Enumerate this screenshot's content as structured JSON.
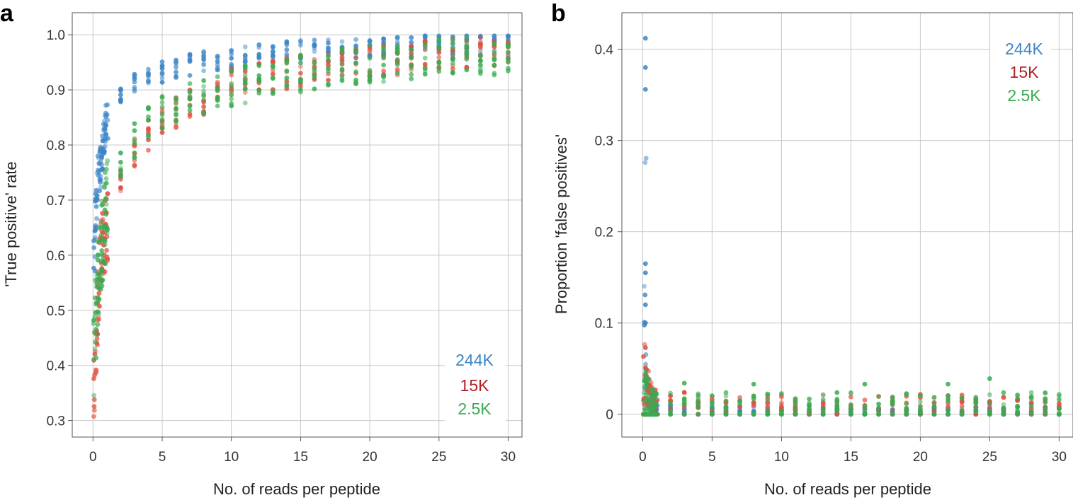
{
  "chart_data": [
    {
      "panel_label": "a",
      "type": "scatter",
      "xlabel": "No. of reads per peptide",
      "ylabel": "'True positive' rate",
      "xlim": [
        -1.5,
        31
      ],
      "ylim": [
        0.27,
        1.04
      ],
      "xticks": [
        0,
        5,
        10,
        15,
        20,
        25,
        30
      ],
      "xtick_labels": [
        "0",
        "5",
        "10",
        "15",
        "20",
        "25",
        "30"
      ],
      "yticks": [
        0.3,
        0.4,
        0.5,
        0.6,
        0.7,
        0.8,
        0.9,
        1.0
      ],
      "ytick_labels": [
        "0.3",
        "0.4",
        "0.5",
        "0.6",
        "0.7",
        "0.8",
        "0.9",
        "1.0"
      ],
      "grid": true,
      "legend_position": "bottom-right",
      "legend": [
        "244K",
        "15K",
        "2.5K"
      ],
      "x": [
        0.1,
        0.2,
        0.3,
        0.4,
        0.5,
        0.6,
        0.7,
        0.8,
        0.9,
        1,
        2,
        3,
        4,
        5,
        6,
        7,
        8,
        9,
        10,
        11,
        12,
        13,
        14,
        15,
        16,
        17,
        18,
        19,
        20,
        21,
        22,
        23,
        24,
        25,
        26,
        27,
        28,
        29,
        30
      ],
      "series": [
        {
          "name": "244K",
          "color": "#3d85c6",
          "values": [
            0.6,
            0.67,
            0.71,
            0.74,
            0.76,
            0.78,
            0.79,
            0.81,
            0.82,
            0.83,
            0.89,
            0.915,
            0.925,
            0.932,
            0.94,
            0.945,
            0.95,
            0.955,
            0.958,
            0.962,
            0.965,
            0.967,
            0.969,
            0.971,
            0.972,
            0.973,
            0.974,
            0.975,
            0.976,
            0.977,
            0.978,
            0.979,
            0.979,
            0.98,
            0.98,
            0.981,
            0.981,
            0.982,
            0.982
          ],
          "spread": 0.02
        },
        {
          "name": "15K",
          "color": "#e05040",
          "values": [
            0.37,
            0.45,
            0.5,
            0.54,
            0.57,
            0.6,
            0.62,
            0.63,
            0.64,
            0.65,
            0.74,
            0.79,
            0.82,
            0.84,
            0.86,
            0.875,
            0.885,
            0.9,
            0.91,
            0.915,
            0.92,
            0.925,
            0.93,
            0.935,
            0.94,
            0.943,
            0.946,
            0.949,
            0.952,
            0.954,
            0.956,
            0.958,
            0.96,
            0.962,
            0.963,
            0.964,
            0.965,
            0.966,
            0.967
          ],
          "spread": 0.03
        },
        {
          "name": "2.5K",
          "color": "#3aaa50",
          "values": [
            0.42,
            0.48,
            0.53,
            0.56,
            0.58,
            0.6,
            0.63,
            0.66,
            0.68,
            0.7,
            0.77,
            0.81,
            0.835,
            0.855,
            0.87,
            0.88,
            0.89,
            0.9,
            0.905,
            0.91,
            0.915,
            0.92,
            0.925,
            0.93,
            0.935,
            0.938,
            0.941,
            0.944,
            0.947,
            0.95,
            0.952,
            0.954,
            0.956,
            0.958,
            0.959,
            0.96,
            0.961,
            0.962,
            0.963
          ],
          "spread": 0.035
        }
      ]
    },
    {
      "panel_label": "b",
      "type": "scatter",
      "xlabel": "No. of reads per peptide",
      "ylabel": "Proportion 'false positives'",
      "xlim": [
        -1.5,
        31
      ],
      "ylim": [
        -0.025,
        0.44
      ],
      "xticks": [
        0,
        5,
        10,
        15,
        20,
        25,
        30
      ],
      "xtick_labels": [
        "0",
        "5",
        "10",
        "15",
        "20",
        "25",
        "30"
      ],
      "yticks": [
        0,
        0.1,
        0.2,
        0.3,
        0.4
      ],
      "ytick_labels": [
        "0",
        "0.1",
        "0.2",
        "0.3",
        "0.4"
      ],
      "grid": true,
      "legend_position": "top-right",
      "legend": [
        "244K",
        "15K",
        "2.5K"
      ],
      "x": [
        0.1,
        0.2,
        0.3,
        0.4,
        0.5,
        0.6,
        0.7,
        0.8,
        0.9,
        1,
        2,
        3,
        4,
        5,
        6,
        7,
        8,
        9,
        10,
        11,
        12,
        13,
        14,
        15,
        16,
        17,
        18,
        19,
        20,
        21,
        22,
        23,
        24,
        25,
        26,
        27,
        28,
        29,
        30
      ],
      "series": [
        {
          "name": "244K",
          "color": "#3d85c6",
          "values": [
            0.09,
            0.16,
            0.03,
            0.02,
            0.015,
            0.012,
            0.01,
            0.009,
            0.008,
            0.008,
            0.006,
            0.006,
            0.005,
            0.005,
            0.005,
            0.005,
            0.004,
            0.004,
            0.004,
            0.004,
            0.004,
            0.004,
            0.004,
            0.004,
            0.004,
            0.004,
            0.004,
            0.004,
            0.004,
            0.004,
            0.004,
            0.004,
            0.004,
            0.004,
            0.004,
            0.004,
            0.004,
            0.004,
            0.004
          ],
          "extra_points": [
            [
              0.2,
              0.412
            ],
            [
              0.2,
              0.38
            ],
            [
              0.2,
              0.356
            ],
            [
              0.2,
              0.165
            ],
            [
              0.2,
              0.155
            ],
            [
              0.2,
              0.12
            ],
            [
              0.2,
              0.1
            ]
          ]
        },
        {
          "name": "15K",
          "color": "#e05040",
          "values": [
            0.035,
            0.04,
            0.03,
            0.025,
            0.02,
            0.018,
            0.016,
            0.015,
            0.014,
            0.013,
            0.012,
            0.012,
            0.011,
            0.011,
            0.011,
            0.011,
            0.011,
            0.011,
            0.011,
            0.011,
            0.011,
            0.011,
            0.011,
            0.011,
            0.011,
            0.011,
            0.011,
            0.011,
            0.011,
            0.011,
            0.011,
            0.011,
            0.011,
            0.011,
            0.011,
            0.011,
            0.011,
            0.011,
            0.011
          ],
          "extra_points": [
            [
              0.2,
              0.073
            ],
            [
              0.2,
              0.051
            ]
          ]
        },
        {
          "name": "2.5K",
          "color": "#3aaa50",
          "values": [
            0.02,
            0.022,
            0.025,
            0.02,
            0.018,
            0.016,
            0.015,
            0.014,
            0.013,
            0.012,
            0.012,
            0.012,
            0.012,
            0.012,
            0.012,
            0.012,
            0.012,
            0.012,
            0.012,
            0.012,
            0.012,
            0.012,
            0.012,
            0.012,
            0.012,
            0.012,
            0.012,
            0.012,
            0.012,
            0.012,
            0.012,
            0.012,
            0.012,
            0.012,
            0.012,
            0.012,
            0.012,
            0.012,
            0.012
          ],
          "extra_points": [
            [
              25,
              0.039
            ],
            [
              22,
              0.033
            ],
            [
              16,
              0.033
            ],
            [
              8,
              0.033
            ],
            [
              3,
              0.034
            ]
          ]
        }
      ]
    }
  ]
}
